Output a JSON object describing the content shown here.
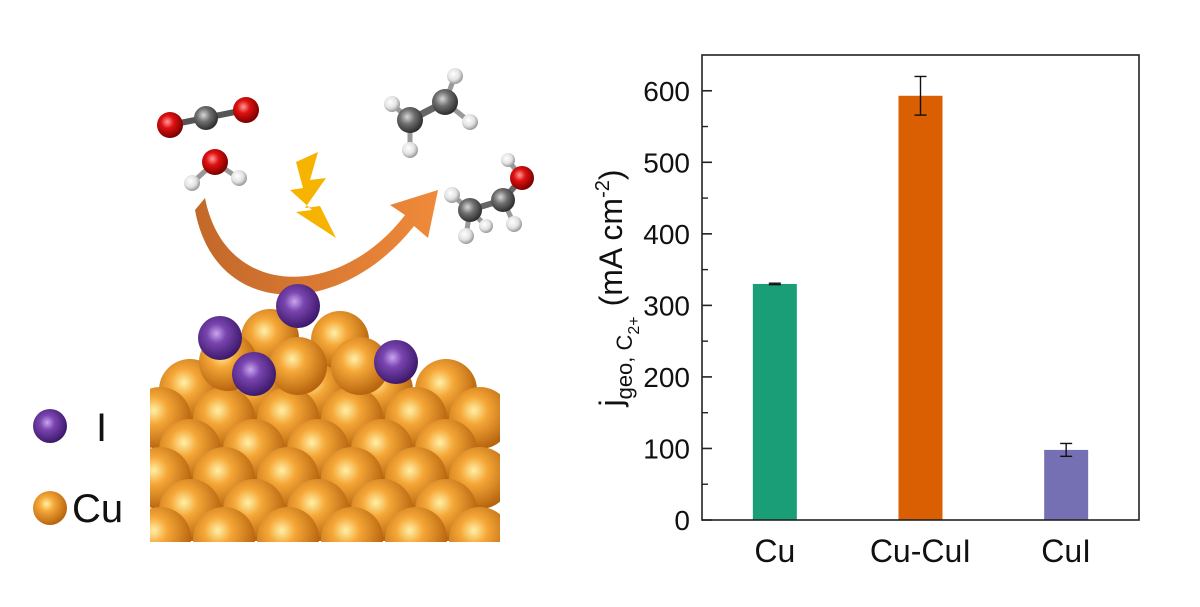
{
  "legend": {
    "items": [
      {
        "symbol": "I",
        "label": "I",
        "color": "#5B2C91",
        "icon": "iodine-atom-icon"
      },
      {
        "symbol": "Cu",
        "label": "Cu",
        "color": "#E08A1E",
        "icon": "copper-atom-icon"
      }
    ]
  },
  "illustration": {
    "reactant_icons": [
      "co2-molecule-icon",
      "water-molecule-icon"
    ],
    "product_icons": [
      "ethylene-molecule-icon",
      "ethanol-molecule-icon"
    ],
    "arrow_color": "#E07A2E",
    "lightning_color": "#F6B400",
    "surface_icon": "cu-slab-with-iodine-icon"
  },
  "chart_data": {
    "type": "bar",
    "categories": [
      "Cu",
      "Cu-CuI",
      "CuI"
    ],
    "values": [
      330,
      593,
      98
    ],
    "errors": [
      1,
      27,
      9
    ],
    "colors": [
      "#1A9E77",
      "#D95F02",
      "#7570B3"
    ],
    "ylabel": {
      "main": "j",
      "sub1": "geo, C",
      "sub2": "2+",
      "unit": "(mA cm",
      "sup": "-2",
      "close": ")"
    },
    "ylim": [
      0,
      650
    ],
    "yticks": [
      0,
      100,
      200,
      300,
      400,
      500,
      600
    ],
    "yticks_minor": [
      50,
      150,
      250,
      350,
      450,
      550
    ],
    "grid": false
  }
}
